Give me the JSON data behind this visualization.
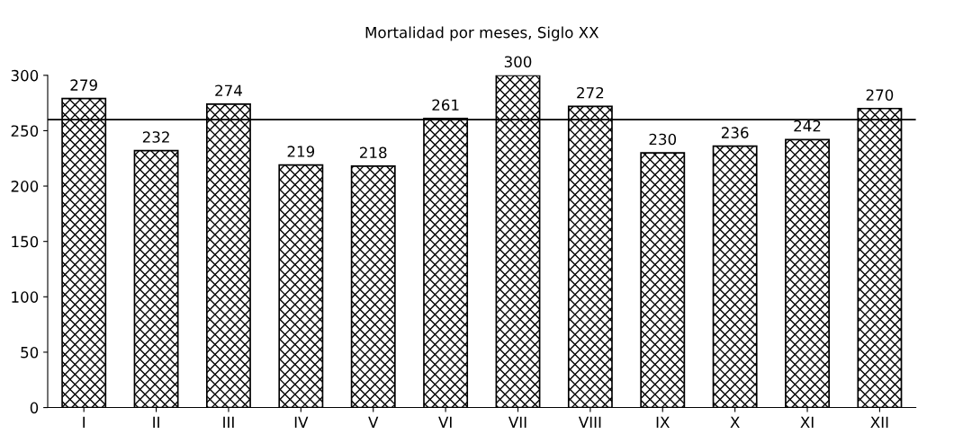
{
  "chart_data": {
    "type": "bar",
    "title": "Mortalidad por meses, Siglo XX",
    "categories": [
      "I",
      "II",
      "III",
      "IV",
      "V",
      "VI",
      "VII",
      "VIII",
      "IX",
      "X",
      "XI",
      "XII"
    ],
    "values": [
      279,
      232,
      274,
      219,
      218,
      261,
      300,
      272,
      230,
      236,
      242,
      270
    ],
    "color": "#000000",
    "ylim": [
      0,
      300
    ],
    "yticks": [
      0,
      50,
      100,
      150,
      200,
      250,
      300
    ],
    "ref_lines": [
      {
        "axis": "y",
        "value": 260,
        "color": "#000000",
        "line_style": "solid"
      }
    ],
    "data_labels": true,
    "grid": false,
    "legend": false
  }
}
